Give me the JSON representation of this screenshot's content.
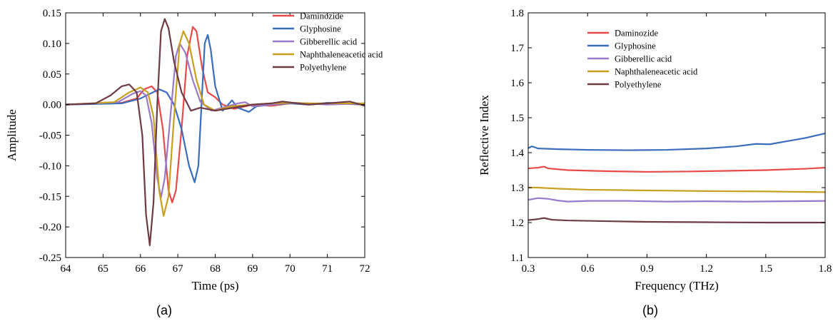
{
  "chart_data": [
    {
      "type": "line",
      "panel_label": "(a)",
      "xlabel": "Time (ps)",
      "ylabel": "Amplitude",
      "xlim": [
        64,
        72
      ],
      "ylim": [
        -0.25,
        0.15
      ],
      "x_ticks": [
        64,
        65,
        66,
        67,
        68,
        69,
        70,
        71,
        72
      ],
      "y_ticks": [
        -0.25,
        -0.2,
        -0.15,
        -0.1,
        -0.05,
        0.0,
        0.05,
        0.1,
        0.15
      ],
      "x_tick_labels": [
        "64",
        "65",
        "66",
        "67",
        "68",
        "69",
        "70",
        "71",
        "72"
      ],
      "y_tick_labels": [
        "-0.25",
        "-0.20",
        "-0.15",
        "-0.10",
        "-0.05",
        "0.00",
        "0.05",
        "0.10",
        "0.15"
      ],
      "grid": false,
      "legend_position": "top-right",
      "series": [
        {
          "name": "Daminozide",
          "color": "#e84a4a",
          "points": [
            [
              64,
              0
            ],
            [
              65.5,
              0.003
            ],
            [
              65.9,
              0.01
            ],
            [
              66.1,
              0.025
            ],
            [
              66.3,
              0.03
            ],
            [
              66.45,
              0.02
            ],
            [
              66.6,
              -0.04
            ],
            [
              66.75,
              -0.14
            ],
            [
              66.85,
              -0.16
            ],
            [
              66.95,
              -0.14
            ],
            [
              67.1,
              -0.04
            ],
            [
              67.25,
              0.08
            ],
            [
              67.4,
              0.127
            ],
            [
              67.5,
              0.12
            ],
            [
              67.65,
              0.06
            ],
            [
              67.8,
              0.02
            ],
            [
              68.0,
              0.012
            ],
            [
              68.2,
              0
            ],
            [
              68.5,
              -0.007
            ],
            [
              69,
              0
            ],
            [
              69.5,
              -0.002
            ],
            [
              70,
              0.002
            ],
            [
              70.5,
              0
            ],
            [
              71,
              0.002
            ],
            [
              72,
              0
            ]
          ]
        },
        {
          "name": "Glyphosine",
          "color": "#3a6dbd",
          "points": [
            [
              64,
              0
            ],
            [
              65.5,
              0.002
            ],
            [
              66.0,
              0.01
            ],
            [
              66.5,
              0.025
            ],
            [
              66.7,
              0.02
            ],
            [
              66.9,
              0
            ],
            [
              67.1,
              -0.04
            ],
            [
              67.3,
              -0.1
            ],
            [
              67.45,
              -0.127
            ],
            [
              67.55,
              -0.1
            ],
            [
              67.65,
              0.02
            ],
            [
              67.72,
              0.1
            ],
            [
              67.8,
              0.114
            ],
            [
              67.88,
              0.09
            ],
            [
              68.0,
              0.03
            ],
            [
              68.2,
              -0.01
            ],
            [
              68.45,
              0.007
            ],
            [
              68.6,
              -0.005
            ],
            [
              68.9,
              -0.012
            ],
            [
              69.1,
              -0.003
            ],
            [
              69.5,
              0
            ],
            [
              70,
              0.002
            ],
            [
              70.5,
              0
            ],
            [
              71,
              0.003
            ],
            [
              72,
              0
            ]
          ]
        },
        {
          "name": "Gibberellic acid",
          "color": "#9b79c9",
          "points": [
            [
              64,
              0
            ],
            [
              65.4,
              0.004
            ],
            [
              65.8,
              0.018
            ],
            [
              66.0,
              0.022
            ],
            [
              66.15,
              0.015
            ],
            [
              66.3,
              -0.03
            ],
            [
              66.45,
              -0.12
            ],
            [
              66.55,
              -0.152
            ],
            [
              66.65,
              -0.12
            ],
            [
              66.8,
              -0.02
            ],
            [
              66.95,
              0.08
            ],
            [
              67.05,
              0.1
            ],
            [
              67.2,
              0.085
            ],
            [
              67.4,
              0.04
            ],
            [
              67.6,
              0.005
            ],
            [
              67.9,
              -0.01
            ],
            [
              68.2,
              -0.005
            ],
            [
              68.6,
              0.002
            ],
            [
              68.8,
              0.004
            ],
            [
              69,
              -0.003
            ],
            [
              69.5,
              0
            ],
            [
              70,
              0.003
            ],
            [
              70.5,
              0.002
            ],
            [
              71,
              0
            ],
            [
              72,
              0.002
            ]
          ]
        },
        {
          "name": "Naphthaleneacetic acid",
          "color": "#c8a020",
          "points": [
            [
              64,
              0
            ],
            [
              65.3,
              0.004
            ],
            [
              65.7,
              0.02
            ],
            [
              66.0,
              0.028
            ],
            [
              66.2,
              0.02
            ],
            [
              66.35,
              -0.02
            ],
            [
              66.5,
              -0.14
            ],
            [
              66.62,
              -0.182
            ],
            [
              66.75,
              -0.15
            ],
            [
              66.9,
              -0.02
            ],
            [
              67.05,
              0.1
            ],
            [
              67.15,
              0.12
            ],
            [
              67.3,
              0.1
            ],
            [
              67.5,
              0.04
            ],
            [
              67.7,
              0
            ],
            [
              68.0,
              -0.01
            ],
            [
              68.4,
              -0.003
            ],
            [
              69,
              0
            ],
            [
              69.5,
              0.002
            ],
            [
              70,
              0.003
            ],
            [
              70.5,
              0.002
            ],
            [
              71,
              0.002
            ],
            [
              72,
              0.002
            ]
          ]
        },
        {
          "name": "Polyethylene",
          "color": "#6e3b45",
          "points": [
            [
              64,
              0
            ],
            [
              64.8,
              0.002
            ],
            [
              65.2,
              0.015
            ],
            [
              65.5,
              0.03
            ],
            [
              65.7,
              0.033
            ],
            [
              65.9,
              0.02
            ],
            [
              66.05,
              -0.05
            ],
            [
              66.15,
              -0.18
            ],
            [
              66.25,
              -0.23
            ],
            [
              66.35,
              -0.16
            ],
            [
              66.45,
              0
            ],
            [
              66.55,
              0.12
            ],
            [
              66.65,
              0.14
            ],
            [
              66.75,
              0.125
            ],
            [
              66.9,
              0.07
            ],
            [
              67.1,
              0.02
            ],
            [
              67.35,
              -0.01
            ],
            [
              67.6,
              -0.005
            ],
            [
              68.0,
              -0.01
            ],
            [
              68.5,
              -0.005
            ],
            [
              69,
              0
            ],
            [
              69.5,
              0.002
            ],
            [
              69.8,
              0.005
            ],
            [
              70.5,
              0
            ],
            [
              71,
              0.002
            ],
            [
              71.6,
              0.005
            ],
            [
              72,
              -0.002
            ]
          ]
        }
      ]
    },
    {
      "type": "line",
      "panel_label": "(b)",
      "xlabel": "Frequency (THz)",
      "ylabel": "Reflective Index",
      "xlim": [
        0.3,
        1.8
      ],
      "ylim": [
        1.1,
        1.8
      ],
      "x_ticks": [
        0.3,
        0.6,
        0.9,
        1.2,
        1.5,
        1.8
      ],
      "y_ticks": [
        1.1,
        1.2,
        1.3,
        1.4,
        1.5,
        1.6,
        1.7,
        1.8
      ],
      "x_tick_labels": [
        "0.3",
        "0.6",
        "0.9",
        "1.2",
        "1.5",
        "1.8"
      ],
      "y_tick_labels": [
        "1.1",
        "1.2",
        "1.3",
        "1.4",
        "1.5",
        "1.6",
        "1.7",
        "1.8"
      ],
      "grid": false,
      "legend_position": "top-center",
      "series": [
        {
          "name": "Daminozide",
          "color": "#e84a4a",
          "points": [
            [
              0.3,
              1.355
            ],
            [
              0.35,
              1.357
            ],
            [
              0.38,
              1.36
            ],
            [
              0.4,
              1.355
            ],
            [
              0.5,
              1.35
            ],
            [
              0.7,
              1.347
            ],
            [
              0.9,
              1.345
            ],
            [
              1.1,
              1.346
            ],
            [
              1.3,
              1.348
            ],
            [
              1.5,
              1.35
            ],
            [
              1.6,
              1.352
            ],
            [
              1.7,
              1.354
            ],
            [
              1.8,
              1.357
            ]
          ]
        },
        {
          "name": "Glyphosine",
          "color": "#3a6dbd",
          "points": [
            [
              0.3,
              1.413
            ],
            [
              0.32,
              1.418
            ],
            [
              0.35,
              1.412
            ],
            [
              0.45,
              1.41
            ],
            [
              0.6,
              1.408
            ],
            [
              0.8,
              1.407
            ],
            [
              1.0,
              1.408
            ],
            [
              1.2,
              1.412
            ],
            [
              1.35,
              1.418
            ],
            [
              1.45,
              1.425
            ],
            [
              1.52,
              1.424
            ],
            [
              1.6,
              1.432
            ],
            [
              1.7,
              1.442
            ],
            [
              1.8,
              1.455
            ]
          ]
        },
        {
          "name": "Gibberellic acid",
          "color": "#9b79c9",
          "points": [
            [
              0.3,
              1.265
            ],
            [
              0.35,
              1.27
            ],
            [
              0.4,
              1.268
            ],
            [
              0.45,
              1.263
            ],
            [
              0.5,
              1.26
            ],
            [
              0.6,
              1.262
            ],
            [
              0.8,
              1.262
            ],
            [
              1.0,
              1.26
            ],
            [
              1.2,
              1.261
            ],
            [
              1.4,
              1.26
            ],
            [
              1.6,
              1.261
            ],
            [
              1.8,
              1.262
            ]
          ]
        },
        {
          "name": "Naphthaleneacetic acid",
          "color": "#c8a020",
          "points": [
            [
              0.3,
              1.3
            ],
            [
              0.35,
              1.3
            ],
            [
              0.45,
              1.297
            ],
            [
              0.6,
              1.294
            ],
            [
              0.9,
              1.292
            ],
            [
              1.2,
              1.29
            ],
            [
              1.5,
              1.289
            ],
            [
              1.8,
              1.287
            ]
          ]
        },
        {
          "name": "Polyethylene",
          "color": "#6e3b45",
          "points": [
            [
              0.3,
              1.207
            ],
            [
              0.35,
              1.21
            ],
            [
              0.38,
              1.213
            ],
            [
              0.42,
              1.208
            ],
            [
              0.5,
              1.206
            ],
            [
              0.7,
              1.204
            ],
            [
              0.9,
              1.202
            ],
            [
              1.2,
              1.201
            ],
            [
              1.5,
              1.2
            ],
            [
              1.8,
              1.2
            ]
          ]
        }
      ]
    }
  ],
  "panel_labels": {
    "a": "(a)",
    "b": "(b)"
  }
}
